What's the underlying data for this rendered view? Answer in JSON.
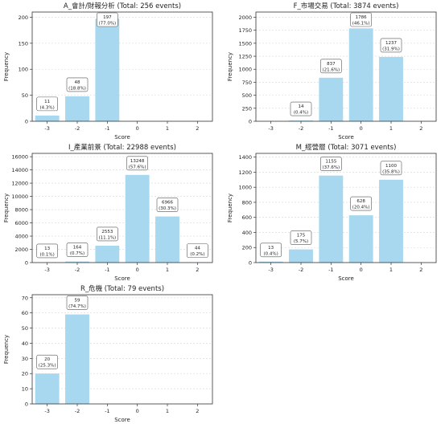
{
  "chart_data": [
    {
      "type": "bar",
      "title": "A_會計/財報分析 (Total: 256 events)",
      "xlabel": "Score",
      "ylabel": "Frequency",
      "categories": [
        "-3",
        "-2",
        "-1",
        "0",
        "1",
        "2"
      ],
      "values": [
        11,
        48,
        197,
        0,
        0,
        0
      ],
      "data_labels": [
        [
          "11",
          "(4.3%)"
        ],
        [
          "48",
          "(18.8%)"
        ],
        [
          "197",
          "(77.0%)"
        ],
        null,
        null,
        null
      ],
      "ylim": [
        0,
        210
      ],
      "yticks": [
        0,
        50,
        100,
        150,
        200
      ],
      "grid": true
    },
    {
      "type": "bar",
      "title": "F_市場交易 (Total: 3874 events)",
      "xlabel": "Score",
      "ylabel": "Frequency",
      "categories": [
        "-3",
        "-2",
        "-1",
        "0",
        "1",
        "2"
      ],
      "values": [
        0,
        14,
        837,
        1786,
        1237,
        0
      ],
      "data_labels": [
        null,
        [
          "14",
          "(0.4%)"
        ],
        [
          "837",
          "(21.6%)"
        ],
        [
          "1786",
          "(46.1%)"
        ],
        [
          "1237",
          "(31.9%)"
        ],
        null
      ],
      "ylim": [
        0,
        2100
      ],
      "yticks": [
        0,
        250,
        500,
        750,
        1000,
        1250,
        1500,
        1750,
        2000
      ],
      "grid": true
    },
    {
      "type": "bar",
      "title": "I_產業前景 (Total: 22988 events)",
      "xlabel": "Score",
      "ylabel": "Frequency",
      "categories": [
        "-3",
        "-2",
        "-1",
        "0",
        "1",
        "2"
      ],
      "values": [
        13,
        164,
        2553,
        13248,
        6966,
        44
      ],
      "data_labels": [
        [
          "13",
          "(0.1%)"
        ],
        [
          "164",
          "(0.7%)"
        ],
        [
          "2553",
          "(11.1%)"
        ],
        [
          "13248",
          "(57.6%)"
        ],
        [
          "6966",
          "(30.3%)"
        ],
        [
          "44",
          "(0.2%)"
        ]
      ],
      "ylim": [
        0,
        16500
      ],
      "yticks": [
        0,
        2000,
        4000,
        6000,
        8000,
        10000,
        12000,
        14000,
        16000
      ],
      "grid": true
    },
    {
      "type": "bar",
      "title": "M_經營層 (Total: 3071 events)",
      "xlabel": "Score",
      "ylabel": "Frequency",
      "categories": [
        "-3",
        "-2",
        "-1",
        "0",
        "1",
        "2"
      ],
      "values": [
        13,
        175,
        1155,
        628,
        1100,
        0
      ],
      "data_labels": [
        [
          "13",
          "(0.4%)"
        ],
        [
          "175",
          "(5.7%)"
        ],
        [
          "1155",
          "(37.6%)"
        ],
        [
          "628",
          "(20.4%)"
        ],
        [
          "1100",
          "(35.8%)"
        ],
        null
      ],
      "ylim": [
        0,
        1450
      ],
      "yticks": [
        0,
        200,
        400,
        600,
        800,
        1000,
        1200,
        1400
      ],
      "grid": true
    },
    {
      "type": "bar",
      "title": "R_危機 (Total: 79 events)",
      "xlabel": "Score",
      "ylabel": "Frequency",
      "categories": [
        "-3",
        "-2",
        "-1",
        "0",
        "1",
        "2"
      ],
      "values": [
        20,
        59,
        0,
        0,
        0,
        0
      ],
      "data_labels": [
        [
          "20",
          "(25.3%)"
        ],
        [
          "59",
          "(74.7%)"
        ],
        null,
        null,
        null,
        null
      ],
      "ylim": [
        0,
        72
      ],
      "yticks": [
        0,
        10,
        20,
        30,
        40,
        50,
        60,
        70
      ],
      "grid": true
    }
  ],
  "colors": {
    "bar": "#a8d8ef",
    "grid": "#d8d8d8",
    "axis": "#333333",
    "label_box_stroke": "#555555",
    "text": "#222222"
  }
}
